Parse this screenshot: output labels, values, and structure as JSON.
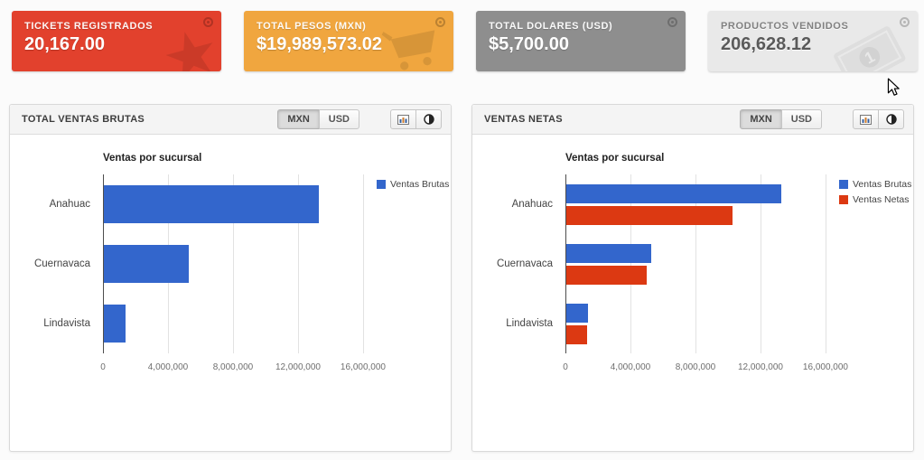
{
  "page": {
    "background": "#fbfbfb"
  },
  "cards": [
    {
      "title": "TICKETS REGISTRADOS",
      "value": "20,167.00",
      "bg": "#e2412d",
      "watermark": "star-icon",
      "corner_icon": "circled-dot-icon"
    },
    {
      "title": "TOTAL PESOS (MXN)",
      "value": "$19,989,573.02",
      "bg": "#f0a63f",
      "watermark": "shopping-cart-icon",
      "corner_icon": "circled-dot-icon"
    },
    {
      "title": "TOTAL DOLARES (USD)",
      "value": "$5,700.00",
      "bg": "#8e8e8e",
      "watermark": null,
      "corner_icon": "circled-dot-icon"
    },
    {
      "title": "PRODUCTOS VENDIDOS",
      "value": "206,628.12",
      "bg": "#e9e9e9",
      "watermark": "banknote-icon",
      "corner_icon": "circled-dot-icon"
    }
  ],
  "panels": [
    {
      "title": "TOTAL VENTAS BRUTAS",
      "toggle": [
        "MXN",
        "USD"
      ],
      "active_currency": "MXN",
      "tool_icons": [
        "chart-image-icon",
        "contrast-icon"
      ]
    },
    {
      "title": "VENTAS NETAS",
      "toggle": [
        "MXN",
        "USD"
      ],
      "active_currency": "MXN",
      "tool_icons": [
        "chart-image-icon",
        "contrast-icon"
      ]
    }
  ],
  "chart_data": [
    {
      "type": "bar",
      "orientation": "horizontal",
      "title": "Ventas por sucursal",
      "categories": [
        "Anahuac",
        "Cuernavaca",
        "Lindavista"
      ],
      "series": [
        {
          "name": "Ventas Brutas",
          "color": "#3366cc",
          "values": [
            13200000,
            5250000,
            1350000
          ]
        }
      ],
      "xlim": [
        0,
        16280000
      ],
      "xticks": [
        0,
        4000000,
        8000000,
        12000000,
        16000000
      ],
      "xtick_labels": [
        "0",
        "4,000,000",
        "8,000,000",
        "12,000,000",
        "16,000,000"
      ],
      "grid": true,
      "legend_position": "right"
    },
    {
      "type": "bar",
      "orientation": "horizontal",
      "title": "Ventas por sucursal",
      "categories": [
        "Anahuac",
        "Cuernavaca",
        "Lindavista"
      ],
      "series": [
        {
          "name": "Ventas Brutas",
          "color": "#3366cc",
          "values": [
            13200000,
            5250000,
            1350000
          ]
        },
        {
          "name": "Ventas Netas",
          "color": "#dc3912",
          "values": [
            10250000,
            4950000,
            1300000
          ]
        }
      ],
      "xlim": [
        0,
        16280000
      ],
      "xticks": [
        0,
        4000000,
        8000000,
        12000000,
        16000000
      ],
      "xtick_labels": [
        "0",
        "4,000,000",
        "8,000,000",
        "12,000,000",
        "16,000,000"
      ],
      "grid": true,
      "legend_position": "right"
    }
  ]
}
